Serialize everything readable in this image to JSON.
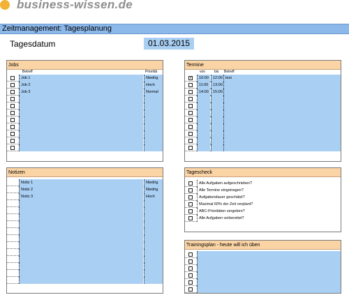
{
  "brand": {
    "name": "business-wissen.de",
    "logo_color": "#f2b233"
  },
  "title": "Zeitmanagement: Tagesplanung",
  "date": {
    "label": "Tagesdatum",
    "value": "01.03.2015"
  },
  "colors": {
    "header": "#fbd4a5",
    "input": "#a9cff3",
    "titlebar": "#8db8ea"
  },
  "jobs": {
    "title": "Jobs",
    "col_subject": "Betreff",
    "col_priority": "Priorität",
    "rows": [
      {
        "checked": false,
        "subject": "Job 1",
        "priority": "Niedrig"
      },
      {
        "checked": false,
        "subject": "Job 2",
        "priority": "Hoch"
      },
      {
        "checked": false,
        "subject": "Job 3",
        "priority": "Normal"
      },
      {
        "checked": false,
        "subject": "",
        "priority": ""
      },
      {
        "checked": false,
        "subject": "",
        "priority": ""
      },
      {
        "checked": false,
        "subject": "",
        "priority": ""
      },
      {
        "checked": false,
        "subject": "",
        "priority": ""
      },
      {
        "checked": false,
        "subject": "",
        "priority": ""
      },
      {
        "checked": false,
        "subject": "",
        "priority": ""
      },
      {
        "checked": false,
        "subject": "",
        "priority": ""
      },
      {
        "checked": false,
        "subject": "",
        "priority": ""
      }
    ]
  },
  "termine": {
    "title": "Termine",
    "col_from": "von",
    "col_to": "bis",
    "col_subject": "Betreff",
    "rows": [
      {
        "checked": true,
        "from": "10:00",
        "to": "12:00",
        "subject": "test"
      },
      {
        "checked": false,
        "from": "11:00",
        "to": "13:00",
        "subject": ""
      },
      {
        "checked": false,
        "from": "14:00",
        "to": "15:00",
        "subject": ""
      },
      {
        "checked": false,
        "from": "",
        "to": "",
        "subject": ""
      },
      {
        "checked": false,
        "from": "",
        "to": "",
        "subject": ""
      },
      {
        "checked": false,
        "from": "",
        "to": "",
        "subject": ""
      },
      {
        "checked": false,
        "from": "",
        "to": "",
        "subject": ""
      },
      {
        "checked": false,
        "from": "",
        "to": "",
        "subject": ""
      },
      {
        "checked": false,
        "from": "",
        "to": "",
        "subject": ""
      },
      {
        "checked": false,
        "from": "",
        "to": "",
        "subject": ""
      },
      {
        "checked": false,
        "from": "",
        "to": "",
        "subject": ""
      }
    ]
  },
  "notizen": {
    "title": "Notizen",
    "rows": [
      {
        "note": "Notiz 1",
        "priority": "Niedrig"
      },
      {
        "note": "Notiz 2",
        "priority": "Niedrig"
      },
      {
        "note": "Notiz 3",
        "priority": "Hoch"
      },
      {
        "note": "",
        "priority": ""
      },
      {
        "note": "",
        "priority": ""
      },
      {
        "note": "",
        "priority": ""
      },
      {
        "note": "",
        "priority": ""
      },
      {
        "note": "",
        "priority": ""
      },
      {
        "note": "",
        "priority": ""
      },
      {
        "note": "",
        "priority": ""
      },
      {
        "note": "",
        "priority": ""
      },
      {
        "note": "",
        "priority": ""
      },
      {
        "note": "",
        "priority": ""
      },
      {
        "note": "",
        "priority": ""
      },
      {
        "note": "",
        "priority": ""
      }
    ]
  },
  "tagescheck": {
    "title": "Tagescheck",
    "rows": [
      {
        "checked": false,
        "text": "Alle Aufgaben aufgeschrieben?"
      },
      {
        "checked": false,
        "text": "Alle Termine eingetragen?"
      },
      {
        "checked": false,
        "text": "Aufgabendauer geschätzt?"
      },
      {
        "checked": false,
        "text": "Maximal 60% der Zeit verplant?"
      },
      {
        "checked": false,
        "text": "ABC-Prioritäten vergeben?"
      },
      {
        "checked": false,
        "text": "Alle Aufgaben vorbereitet?"
      }
    ]
  },
  "training": {
    "title": "Trainingsplan - heute will ich üben",
    "rows": [
      {
        "checked": false,
        "text": ""
      },
      {
        "checked": false,
        "text": ""
      },
      {
        "checked": false,
        "text": ""
      },
      {
        "checked": false,
        "text": ""
      },
      {
        "checked": false,
        "text": ""
      },
      {
        "checked": false,
        "text": ""
      }
    ]
  }
}
